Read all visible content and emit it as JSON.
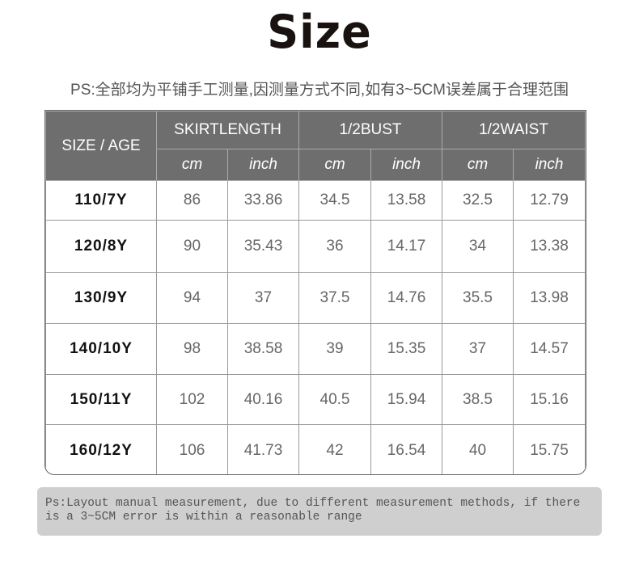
{
  "title": "Size",
  "note_cn": "PS:全部均为平铺手工测量,因测量方式不同,如有3~5CM误差属于合理范围",
  "table": {
    "size_header": "SIZE / AGE",
    "groups": [
      "SKIRTLENGTH",
      "1/2BUST",
      "1/2WAIST"
    ],
    "units": [
      "cm",
      "inch",
      "cm",
      "inch",
      "cm",
      "inch"
    ],
    "rows": [
      [
        "110/7Y",
        "86",
        "33.86",
        "34.5",
        "13.58",
        "32.5",
        "12.79"
      ],
      [
        "120/8Y",
        "90",
        "35.43",
        "36",
        "14.17",
        "34",
        "13.38"
      ],
      [
        "130/9Y",
        "94",
        "37",
        "37.5",
        "14.76",
        "35.5",
        "13.98"
      ],
      [
        "140/10Y",
        "98",
        "38.58",
        "39",
        "15.35",
        "37",
        "14.57"
      ],
      [
        "150/11Y",
        "102",
        "40.16",
        "40.5",
        "15.94",
        "38.5",
        "15.16"
      ],
      [
        "160/12Y",
        "106",
        "41.73",
        "42",
        "16.54",
        "40",
        "15.75"
      ]
    ]
  },
  "note_en": "Ps:Layout manual measurement, due to different measurement methods, if there is a 3~5CM error is within a reasonable range"
}
